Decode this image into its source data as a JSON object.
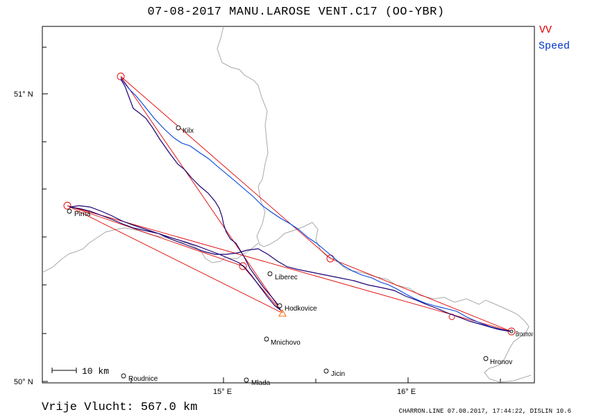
{
  "header": {
    "title": "07-08-2017   MANU.LAROSE   VENT.C17 (OO-YBR)"
  },
  "legend": {
    "vv_label": "VV",
    "vv_color": "#e00000",
    "speed_label": "Speed",
    "speed_color": "#0033cc"
  },
  "axes": {
    "lat_labels": [
      "51° N",
      "50° N"
    ],
    "lon_labels": [
      "15° E",
      "16° E"
    ]
  },
  "scale_bar": {
    "label": "10 km"
  },
  "cities": [
    {
      "name": "Kilx"
    },
    {
      "name": "Pirna"
    },
    {
      "name": "Liberec"
    },
    {
      "name": "Hodkovice"
    },
    {
      "name": "Mnichovo"
    },
    {
      "name": "Jicin"
    },
    {
      "name": "Roudnice"
    },
    {
      "name": "Mlada"
    },
    {
      "name": "Hronov"
    },
    {
      "name": "Broumov"
    }
  ],
  "summary": {
    "distance_text": "Vrije Vlucht:  567.0 km"
  },
  "footer": {
    "text": "CHARRON.LINE 07.08.2017, 17:44:22, DISLIN 10.6"
  },
  "colors": {
    "frame": "#000000",
    "border": "#a0a0a0",
    "track_main": "#1a0070",
    "track_speed": "#0044dd",
    "task": "#e00000",
    "start_marker": "#ff6600"
  }
}
